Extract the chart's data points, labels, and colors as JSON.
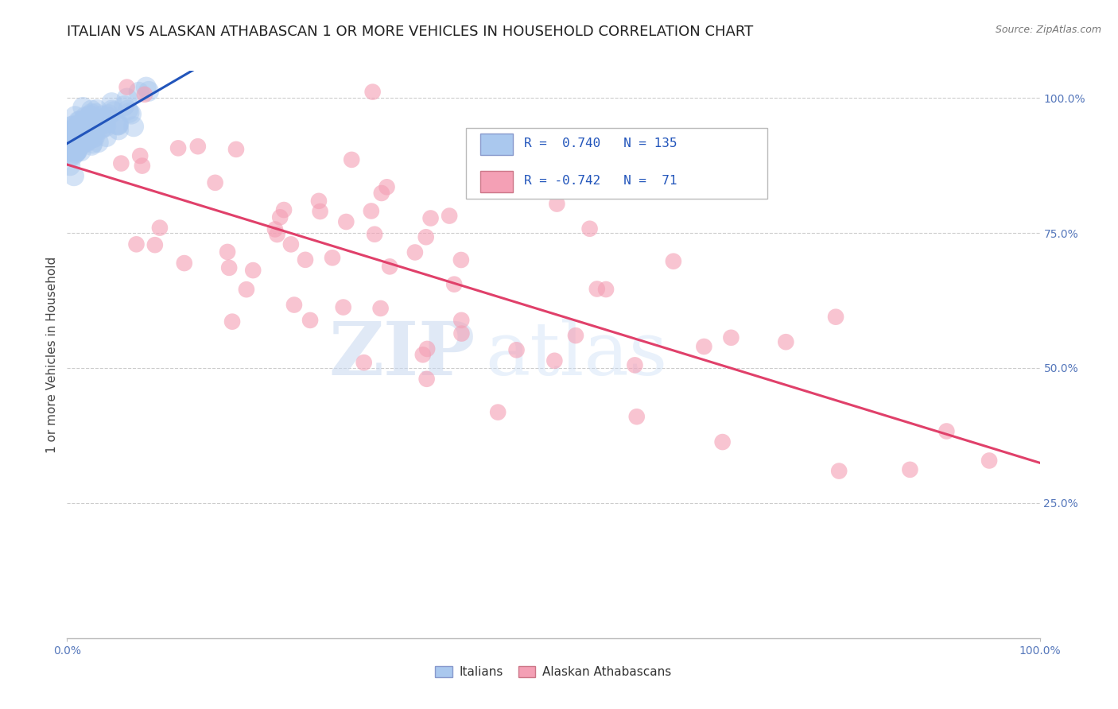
{
  "title": "ITALIAN VS ALASKAN ATHABASCAN 1 OR MORE VEHICLES IN HOUSEHOLD CORRELATION CHART",
  "source_text": "Source: ZipAtlas.com",
  "ylabel": "1 or more Vehicles in Household",
  "xlim": [
    0.0,
    1.0
  ],
  "ylim": [
    0.0,
    1.05
  ],
  "y_tick_labels": [
    "25.0%",
    "50.0%",
    "75.0%",
    "100.0%"
  ],
  "y_tick_positions": [
    0.25,
    0.5,
    0.75,
    1.0
  ],
  "legend_italian_label": "Italians",
  "legend_athabascan_label": "Alaskan Athabascans",
  "italian_color": "#aac8ee",
  "athabascan_color": "#f4a0b5",
  "italian_line_color": "#2255bb",
  "athabascan_line_color": "#e0406a",
  "R_italian": 0.74,
  "N_italian": 135,
  "R_athabascan": -0.742,
  "N_athabascan": 71,
  "italian_line_x0": 0.0,
  "italian_line_y0": 0.895,
  "italian_line_x1": 1.0,
  "italian_line_y1": 1.005,
  "athabascan_line_x0": 0.0,
  "athabascan_line_y0": 0.96,
  "athabascan_line_x1": 1.0,
  "athabascan_line_y1": 0.4,
  "background_color": "#ffffff",
  "watermark_line1": "ZIP",
  "watermark_line2": "atlas",
  "title_fontsize": 13,
  "axis_label_fontsize": 11,
  "tick_label_fontsize": 10,
  "legend_fontsize": 11,
  "dot_size_italian": 350,
  "dot_size_athabascan": 220
}
